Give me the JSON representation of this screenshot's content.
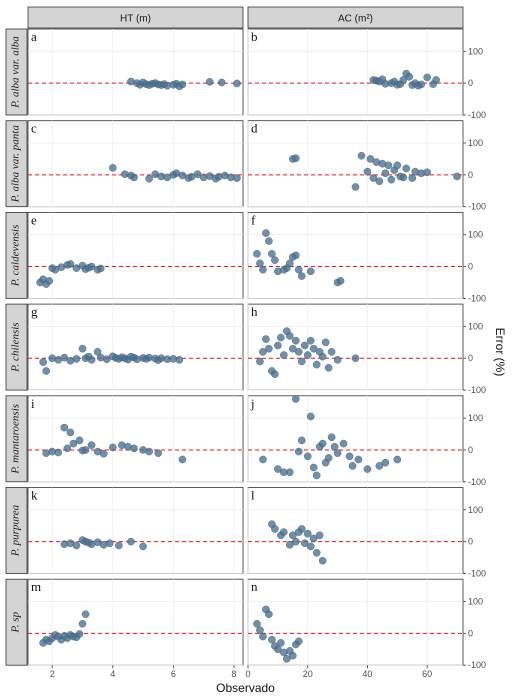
{
  "chart_data": {
    "type": "scatter",
    "columns": [
      "HT (m)",
      "AC (m²)"
    ],
    "rows": [
      "P. alba var. alba",
      "P. alba var. panta",
      "P. caldevensis",
      "P. chilensis",
      "P. mantaroensis",
      "P. purpurea",
      "P. sp"
    ],
    "xlabel": "Observado",
    "ylabel": "Error (%)",
    "ylim": [
      -100,
      170
    ],
    "yticks": [
      -100,
      0,
      100
    ],
    "xlim_ht": [
      1.2,
      8.3
    ],
    "xticks_ht": [
      2,
      4,
      6,
      8
    ],
    "xlim_ac": [
      0,
      72
    ],
    "xticks_ac": [
      0,
      20,
      40,
      60
    ],
    "reference_line": 0,
    "point_color": "#4a6f8e",
    "line_color": "#e31a1c",
    "grid": true,
    "panels": [
      {
        "letter": "a",
        "row": 0,
        "col": 0,
        "points": [
          [
            4.6,
            5
          ],
          [
            4.8,
            0
          ],
          [
            4.9,
            -5
          ],
          [
            5.0,
            2
          ],
          [
            5.1,
            -3
          ],
          [
            5.2,
            -6
          ],
          [
            5.3,
            -2
          ],
          [
            5.4,
            0
          ],
          [
            5.5,
            -4
          ],
          [
            5.6,
            -6
          ],
          [
            5.7,
            -3
          ],
          [
            5.8,
            -8
          ],
          [
            6.0,
            -5
          ],
          [
            6.1,
            -2
          ],
          [
            6.2,
            -10
          ],
          [
            6.3,
            -4
          ],
          [
            7.2,
            4
          ],
          [
            7.6,
            2
          ],
          [
            8.1,
            -1
          ]
        ]
      },
      {
        "letter": "b",
        "row": 0,
        "col": 1,
        "points": [
          [
            42,
            10
          ],
          [
            43,
            8
          ],
          [
            44,
            5
          ],
          [
            45,
            12
          ],
          [
            46,
            -2
          ],
          [
            48,
            0
          ],
          [
            49,
            5
          ],
          [
            50,
            -5
          ],
          [
            51,
            -3
          ],
          [
            52,
            10
          ],
          [
            53,
            30
          ],
          [
            54,
            20
          ],
          [
            55,
            -6
          ],
          [
            56,
            0
          ],
          [
            57,
            -8
          ],
          [
            58,
            -4
          ],
          [
            60,
            18
          ],
          [
            62,
            -3
          ],
          [
            63,
            10
          ]
        ]
      },
      {
        "letter": "c",
        "row": 1,
        "col": 0,
        "points": [
          [
            4.0,
            22
          ],
          [
            4.4,
            2
          ],
          [
            4.6,
            -2
          ],
          [
            4.7,
            -8
          ],
          [
            5.2,
            -12
          ],
          [
            5.4,
            2
          ],
          [
            5.6,
            -5
          ],
          [
            5.8,
            -8
          ],
          [
            6.0,
            0
          ],
          [
            6.1,
            5
          ],
          [
            6.3,
            -2
          ],
          [
            6.5,
            -10
          ],
          [
            6.6,
            -6
          ],
          [
            6.8,
            2
          ],
          [
            7.0,
            -8
          ],
          [
            7.2,
            -4
          ],
          [
            7.4,
            -12
          ],
          [
            7.5,
            -6
          ],
          [
            7.7,
            -2
          ],
          [
            7.9,
            -8
          ],
          [
            8.1,
            -10
          ]
        ]
      },
      {
        "letter": "d",
        "row": 1,
        "col": 1,
        "points": [
          [
            15,
            50
          ],
          [
            16,
            52
          ],
          [
            36,
            -38
          ],
          [
            38,
            60
          ],
          [
            40,
            10
          ],
          [
            41,
            50
          ],
          [
            42,
            -10
          ],
          [
            43,
            40
          ],
          [
            44,
            -20
          ],
          [
            45,
            35
          ],
          [
            46,
            5
          ],
          [
            47,
            30
          ],
          [
            48,
            -15
          ],
          [
            49,
            15
          ],
          [
            50,
            30
          ],
          [
            51,
            -5
          ],
          [
            52,
            -8
          ],
          [
            53,
            20
          ],
          [
            55,
            -10
          ],
          [
            56,
            10
          ],
          [
            58,
            5
          ],
          [
            60,
            8
          ],
          [
            70,
            -5
          ]
        ]
      },
      {
        "letter": "e",
        "row": 2,
        "col": 0,
        "points": [
          [
            1.6,
            -50
          ],
          [
            1.7,
            -40
          ],
          [
            1.8,
            -55
          ],
          [
            1.9,
            -45
          ],
          [
            2.0,
            -5
          ],
          [
            2.1,
            -10
          ],
          [
            2.3,
            -2
          ],
          [
            2.5,
            5
          ],
          [
            2.6,
            8
          ],
          [
            2.8,
            -5
          ],
          [
            3.0,
            3
          ],
          [
            3.1,
            -8
          ],
          [
            3.2,
            -4
          ],
          [
            3.3,
            0
          ],
          [
            3.5,
            -10
          ],
          [
            3.6,
            -6
          ]
        ]
      },
      {
        "letter": "f",
        "row": 2,
        "col": 1,
        "points": [
          [
            3,
            40
          ],
          [
            4,
            10
          ],
          [
            5,
            -10
          ],
          [
            6,
            105
          ],
          [
            7,
            80
          ],
          [
            8,
            40
          ],
          [
            9,
            20
          ],
          [
            10,
            -15
          ],
          [
            12,
            -10
          ],
          [
            13,
            -5
          ],
          [
            14,
            10
          ],
          [
            15,
            30
          ],
          [
            16,
            35
          ],
          [
            17,
            -10
          ],
          [
            18,
            -30
          ],
          [
            21,
            -15
          ],
          [
            30,
            -50
          ],
          [
            31,
            -45
          ]
        ]
      },
      {
        "letter": "g",
        "row": 3,
        "col": 0,
        "points": [
          [
            1.7,
            -12
          ],
          [
            1.8,
            -40
          ],
          [
            2.0,
            0
          ],
          [
            2.2,
            -5
          ],
          [
            2.4,
            2
          ],
          [
            2.6,
            -8
          ],
          [
            2.8,
            -2
          ],
          [
            3.0,
            30
          ],
          [
            3.1,
            0
          ],
          [
            3.2,
            5
          ],
          [
            3.3,
            -5
          ],
          [
            3.5,
            20
          ],
          [
            3.6,
            2
          ],
          [
            3.8,
            -3
          ],
          [
            4.0,
            6
          ],
          [
            4.1,
            1
          ],
          [
            4.2,
            -2
          ],
          [
            4.3,
            3
          ],
          [
            4.4,
            0
          ],
          [
            4.5,
            -4
          ],
          [
            4.6,
            5
          ],
          [
            4.7,
            2
          ],
          [
            4.8,
            -3
          ],
          [
            5.0,
            1
          ],
          [
            5.1,
            -2
          ],
          [
            5.2,
            2
          ],
          [
            5.4,
            -1
          ],
          [
            5.5,
            -6
          ],
          [
            5.6,
            0
          ],
          [
            5.8,
            -3
          ],
          [
            6.0,
            -2
          ],
          [
            6.2,
            -5
          ]
        ]
      },
      {
        "letter": "h",
        "row": 3,
        "col": 1,
        "points": [
          [
            4,
            -10
          ],
          [
            5,
            20
          ],
          [
            6,
            60
          ],
          [
            7,
            30
          ],
          [
            8,
            -40
          ],
          [
            9,
            -50
          ],
          [
            10,
            40
          ],
          [
            11,
            65
          ],
          [
            12,
            10
          ],
          [
            13,
            85
          ],
          [
            14,
            70
          ],
          [
            15,
            30
          ],
          [
            16,
            55
          ],
          [
            17,
            20
          ],
          [
            18,
            -10
          ],
          [
            19,
            40
          ],
          [
            20,
            10
          ],
          [
            21,
            55
          ],
          [
            22,
            30
          ],
          [
            23,
            -20
          ],
          [
            24,
            20
          ],
          [
            25,
            5
          ],
          [
            26,
            50
          ],
          [
            27,
            -30
          ],
          [
            28,
            20
          ],
          [
            30,
            -5
          ],
          [
            36,
            0
          ]
        ]
      },
      {
        "letter": "i",
        "row": 4,
        "col": 0,
        "points": [
          [
            1.8,
            -10
          ],
          [
            2.0,
            -5
          ],
          [
            2.2,
            -8
          ],
          [
            2.4,
            70
          ],
          [
            2.5,
            5
          ],
          [
            2.6,
            55
          ],
          [
            2.7,
            20
          ],
          [
            2.9,
            30
          ],
          [
            3.0,
            -2
          ],
          [
            3.1,
            0
          ],
          [
            3.3,
            15
          ],
          [
            3.5,
            -5
          ],
          [
            3.7,
            -12
          ],
          [
            4.0,
            8
          ],
          [
            4.3,
            15
          ],
          [
            4.5,
            10
          ],
          [
            4.7,
            5
          ],
          [
            5.0,
            0
          ],
          [
            5.2,
            -5
          ],
          [
            5.5,
            -10
          ],
          [
            6.3,
            -30
          ]
        ]
      },
      {
        "letter": "j",
        "row": 4,
        "col": 1,
        "points": [
          [
            5,
            -30
          ],
          [
            10,
            -60
          ],
          [
            12,
            -70
          ],
          [
            14,
            -70
          ],
          [
            16,
            160
          ],
          [
            17,
            -5
          ],
          [
            18,
            30
          ],
          [
            20,
            -20
          ],
          [
            21,
            105
          ],
          [
            22,
            -55
          ],
          [
            23,
            -80
          ],
          [
            24,
            10
          ],
          [
            25,
            20
          ],
          [
            26,
            -40
          ],
          [
            27,
            -25
          ],
          [
            28,
            40
          ],
          [
            29,
            10
          ],
          [
            30,
            -10
          ],
          [
            32,
            20
          ],
          [
            34,
            -20
          ],
          [
            35,
            -50
          ],
          [
            37,
            -30
          ],
          [
            40,
            -60
          ],
          [
            44,
            -50
          ],
          [
            46,
            -40
          ],
          [
            50,
            -30
          ]
        ]
      },
      {
        "letter": "k",
        "row": 5,
        "col": 0,
        "points": [
          [
            2.4,
            -8
          ],
          [
            2.6,
            -5
          ],
          [
            2.8,
            -12
          ],
          [
            3.0,
            5
          ],
          [
            3.1,
            0
          ],
          [
            3.2,
            -3
          ],
          [
            3.3,
            -8
          ],
          [
            3.5,
            -2
          ],
          [
            3.7,
            -10
          ],
          [
            3.9,
            -5
          ],
          [
            4.2,
            -12
          ],
          [
            4.6,
            0
          ],
          [
            5.0,
            -15
          ]
        ]
      },
      {
        "letter": "l",
        "row": 5,
        "col": 1,
        "points": [
          [
            8,
            55
          ],
          [
            9,
            40
          ],
          [
            11,
            20
          ],
          [
            12,
            30
          ],
          [
            14,
            -10
          ],
          [
            15,
            20
          ],
          [
            16,
            0
          ],
          [
            17,
            30
          ],
          [
            18,
            40
          ],
          [
            19,
            -5
          ],
          [
            20,
            25
          ],
          [
            21,
            -15
          ],
          [
            22,
            10
          ],
          [
            23,
            -35
          ],
          [
            24,
            20
          ],
          [
            25,
            -60
          ]
        ]
      },
      {
        "letter": "m",
        "row": 6,
        "col": 0,
        "points": [
          [
            1.7,
            -30
          ],
          [
            1.8,
            -20
          ],
          [
            1.9,
            -25
          ],
          [
            2.0,
            -15
          ],
          [
            2.1,
            -5
          ],
          [
            2.2,
            -10
          ],
          [
            2.3,
            -20
          ],
          [
            2.4,
            -8
          ],
          [
            2.5,
            -15
          ],
          [
            2.6,
            -5
          ],
          [
            2.7,
            -10
          ],
          [
            2.8,
            -12
          ],
          [
            2.9,
            -2
          ],
          [
            3.0,
            30
          ],
          [
            3.1,
            60
          ]
        ]
      },
      {
        "letter": "n",
        "row": 6,
        "col": 1,
        "points": [
          [
            3,
            30
          ],
          [
            4,
            10
          ],
          [
            5,
            -10
          ],
          [
            6,
            75
          ],
          [
            7,
            60
          ],
          [
            8,
            -20
          ],
          [
            9,
            -40
          ],
          [
            10,
            -50
          ],
          [
            11,
            -30
          ],
          [
            12,
            -60
          ],
          [
            13,
            -80
          ],
          [
            14,
            -55
          ],
          [
            15,
            -70
          ],
          [
            16,
            -35
          ],
          [
            17,
            -25
          ]
        ]
      }
    ]
  }
}
